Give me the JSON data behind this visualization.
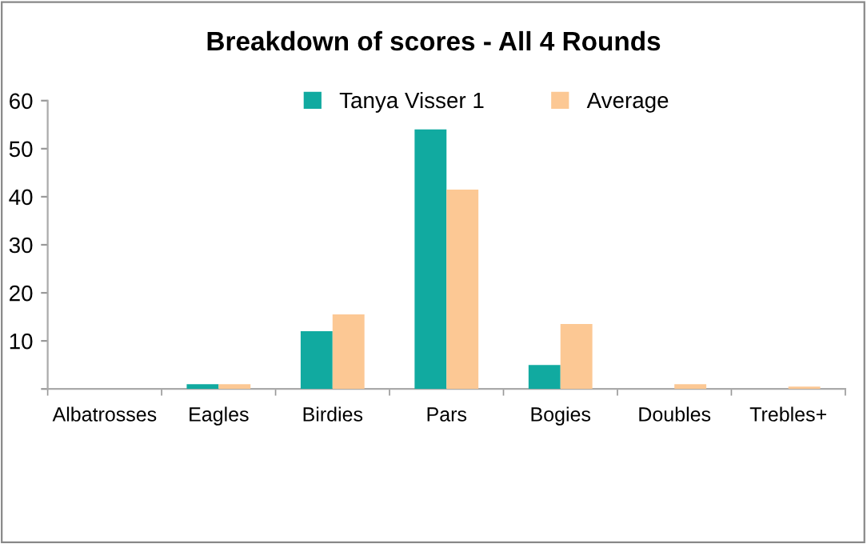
{
  "chart_data": {
    "type": "bar",
    "title": "Breakdown of scores - All 4 Rounds",
    "categories": [
      "Albatrosses",
      "Eagles",
      "Birdies",
      "Pars",
      "Bogies",
      "Doubles",
      "Trebles+"
    ],
    "series": [
      {
        "name": "Tanya Visser 1",
        "color": "#11aaa0",
        "values": [
          0,
          1,
          12,
          54,
          5,
          0,
          0
        ]
      },
      {
        "name": "Average",
        "color": "#fcc894",
        "values": [
          0,
          1,
          15.5,
          41.5,
          13.5,
          1,
          0.5
        ]
      }
    ],
    "ylim": [
      0,
      60
    ],
    "yticks": [
      {
        "value": 0,
        "label": null
      },
      10,
      20,
      30,
      40,
      50,
      60
    ],
    "grid": false,
    "legend": "top"
  }
}
